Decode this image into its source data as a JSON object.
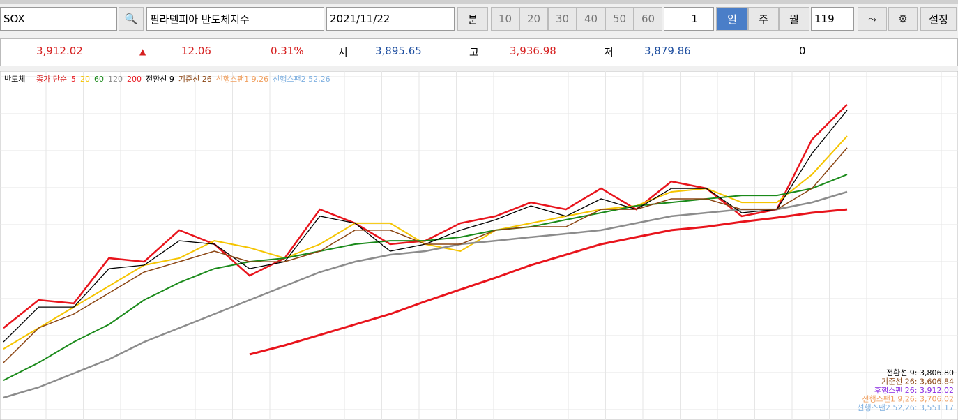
{
  "toolbar": {
    "symbol": "SOX",
    "name": "필라델피아 반도체지수",
    "date": "2021/11/22",
    "minute": "분",
    "periods": [
      "10",
      "20",
      "30",
      "40",
      "50",
      "60"
    ],
    "unit": "1",
    "day": "일",
    "week": "주",
    "month": "월",
    "bars": "119",
    "settings": "설정"
  },
  "quote": {
    "price": "3,912.02",
    "arrow": "▲",
    "change": "12.06",
    "rate": "0.31%",
    "open_label": "시",
    "open": "3,895.65",
    "high_label": "고",
    "high": "3,936.98",
    "low_label": "저",
    "low": "3,879.86",
    "volume": "0"
  },
  "chart_data": {
    "type": "line",
    "legend_label": "반도체",
    "ma_label": "종가 단순",
    "span1": "선행스팬1 9,26",
    "span2": "선행스팬2 52,26",
    "ylim": [
      1870,
      4100
    ],
    "series": [
      {
        "name": "5",
        "color": "#e8141c",
        "values": [
          2386,
          2574,
          2551,
          2856,
          2832,
          3044,
          2950,
          2738,
          2856,
          3184,
          3091,
          2950,
          2973,
          3091,
          3138,
          3231,
          3184,
          3325,
          3184,
          3372,
          3325,
          3138,
          3184,
          3654,
          3889
        ]
      },
      {
        "name": "20",
        "color": "#f5c400",
        "values": [
          2245,
          2386,
          2527,
          2668,
          2809,
          2856,
          2973,
          2926,
          2856,
          2950,
          3091,
          3091,
          2950,
          2903,
          3044,
          3091,
          3138,
          3184,
          3208,
          3302,
          3325,
          3231,
          3231,
          3419,
          3677
        ]
      },
      {
        "name": "60",
        "color": "#1a8a1a",
        "values": [
          2034,
          2152,
          2292,
          2410,
          2574,
          2691,
          2785,
          2832,
          2856,
          2903,
          2950,
          2973,
          2973,
          2997,
          3044,
          3067,
          3114,
          3161,
          3208,
          3231,
          3255,
          3278,
          3278,
          3325,
          3419
        ]
      },
      {
        "name": "120",
        "color": "#8c8c8c",
        "values": [
          1917,
          1987,
          2081,
          2175,
          2292,
          2386,
          2480,
          2574,
          2668,
          2762,
          2832,
          2879,
          2903,
          2950,
          2973,
          2997,
          3020,
          3044,
          3091,
          3138,
          3161,
          3184,
          3184,
          3231,
          3302
        ]
      },
      {
        "name": "200",
        "color": "#e8141c",
        "values": [
          null,
          null,
          null,
          null,
          null,
          null,
          null,
          2208,
          2269,
          2339,
          2410,
          2480,
          2565,
          2645,
          2724,
          2809,
          2879,
          2950,
          2997,
          3044,
          3067,
          3100,
          3128,
          3161,
          3184
        ]
      },
      {
        "name": "전환선 9",
        "color": "#000000",
        "values": [
          2292,
          2527,
          2527,
          2785,
          2809,
          2973,
          2950,
          2785,
          2832,
          3138,
          3091,
          2903,
          2950,
          3044,
          3114,
          3208,
          3138,
          3255,
          3184,
          3325,
          3325,
          3161,
          3184,
          3560,
          3851
        ]
      },
      {
        "name": "기준선 26",
        "color": "#8b4513",
        "values": [
          2152,
          2386,
          2480,
          2621,
          2762,
          2832,
          2903,
          2832,
          2832,
          2903,
          3044,
          3044,
          2950,
          2950,
          3044,
          3067,
          3067,
          3184,
          3184,
          3255,
          3255,
          3184,
          3184,
          3325,
          3598
        ]
      }
    ],
    "readouts": [
      {
        "text": "전환선 9: 3,806.80",
        "color": "#000"
      },
      {
        "text": "기준선 26: 3,606.84",
        "color": "#8b4513"
      },
      {
        "text": "후행스팬 26: 3,912.02",
        "color": "#8a2be2"
      },
      {
        "text": "선행스팬1 9,26: 3,706.02",
        "color": "#f0a060"
      },
      {
        "text": "선행스팬2 52,26: 3,551.17",
        "color": "#7fb0e0"
      }
    ]
  }
}
